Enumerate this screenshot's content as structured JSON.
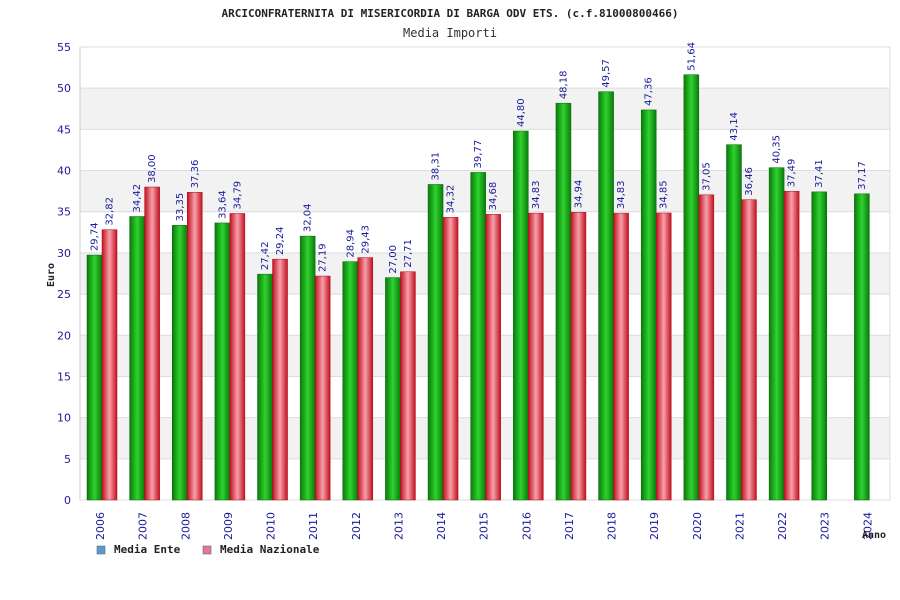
{
  "chart_data": {
    "type": "bar",
    "title": "ARCICONFRATERNITA DI MISERICORDIA DI BARGA ODV ETS. (c.f.81000800466)",
    "subtitle": "Media Importi",
    "xlabel": "Anno",
    "ylabel": "Euro",
    "ylim": [
      0,
      55
    ],
    "yticks": [
      "0",
      "5",
      "10",
      "15",
      "20",
      "25",
      "30",
      "35",
      "40",
      "45",
      "50",
      "55"
    ],
    "grid": true,
    "legend_position": "bottom-left",
    "categories": [
      "2006",
      "2007",
      "2008",
      "2009",
      "2010",
      "2011",
      "2012",
      "2013",
      "2014",
      "2015",
      "2016",
      "2017",
      "2018",
      "2019",
      "2020",
      "2021",
      "2022",
      "2023",
      "2024"
    ],
    "series": [
      {
        "name": "Media Ente",
        "color": "#1fb81f",
        "legend_color": "#5b9bd5",
        "values": [
          29.74,
          34.42,
          33.35,
          33.64,
          27.42,
          32.04,
          28.94,
          27.0,
          38.31,
          39.77,
          44.8,
          48.18,
          49.57,
          47.36,
          51.64,
          43.14,
          40.35,
          37.41,
          37.17
        ],
        "labels": [
          "29,74",
          "34,42",
          "33,35",
          "33,64",
          "27,42",
          "32,04",
          "28,94",
          "27,00",
          "38,31",
          "39,77",
          "44,80",
          "48,18",
          "49,57",
          "47,36",
          "51,64",
          "43,14",
          "40,35",
          "37,41",
          "37,17"
        ]
      },
      {
        "name": "Media Nazionale",
        "color": "#e8283c",
        "legend_color": "#e27a9a",
        "values": [
          32.82,
          38.0,
          37.36,
          34.79,
          29.24,
          27.19,
          29.43,
          27.71,
          34.32,
          34.68,
          34.83,
          34.94,
          34.83,
          34.85,
          37.05,
          36.46,
          37.49,
          null,
          null
        ],
        "labels": [
          "32,82",
          "38,00",
          "37,36",
          "34,79",
          "29,24",
          "27,19",
          "29,43",
          "27,71",
          "34,32",
          "34,68",
          "34,83",
          "34,94",
          "34,83",
          "34,85",
          "37,05",
          "36,46",
          "37,49",
          null,
          null
        ]
      }
    ]
  }
}
